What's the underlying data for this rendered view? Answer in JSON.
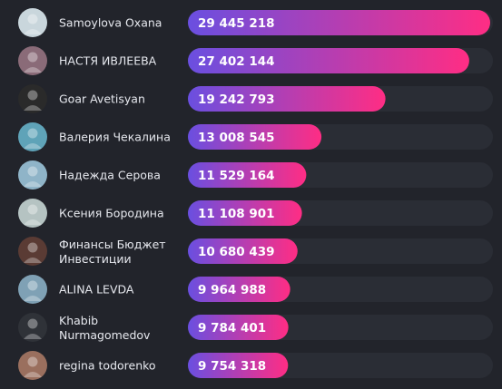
{
  "chart_data": {
    "type": "bar",
    "orientation": "horizontal",
    "categories": [
      "Samoylova Oxana",
      "НАСТЯ ИВЛЕЕВА",
      "Goar Avetisyan",
      "Валерия Чекалина",
      "Надежда Серова",
      "Ксения Бородина",
      "Финансы Бюджет Инвестиции",
      "ALINA LEVDA",
      "Khabib Nurmagomedov",
      "regina todorenko"
    ],
    "values": [
      29445218,
      27402144,
      19242793,
      13008545,
      11529164,
      11108901,
      10680439,
      9964988,
      9784401,
      9754318
    ],
    "value_labels": [
      "29 445 218",
      "27 402 144",
      "19 242 793",
      "13 008 545",
      "11 529 164",
      "11 108 901",
      "10 680 439",
      "9 964 988",
      "9 784 401",
      "9 754 318"
    ],
    "title": "",
    "xlabel": "",
    "ylabel": "",
    "colors": {
      "background": "#22242b",
      "track": "#2a2d35",
      "bar_start": "#6a4fe0",
      "bar_end": "#ff2d84",
      "text": "#e6e8ee"
    },
    "avatar_colors": [
      "#c9d6dc",
      "#8a6b78",
      "#2a2a2a",
      "#5fa3b8",
      "#8fb4c8",
      "#b5c3c2",
      "#5a3b34",
      "#7fa1b5",
      "#2f3238",
      "#9a6f5e"
    ]
  }
}
